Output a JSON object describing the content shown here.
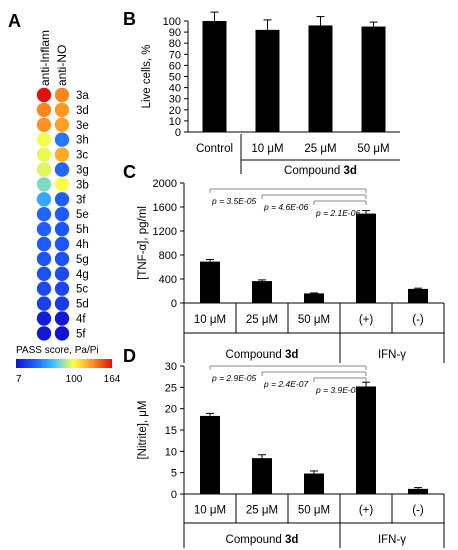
{
  "panels": {
    "A": {
      "letter": "A",
      "col_labels": [
        "anti-Inflam",
        "anti-NO"
      ],
      "rows": [
        {
          "label": "3a",
          "inflam": 164,
          "no": 135
        },
        {
          "label": "3d",
          "inflam": 135,
          "no": 130
        },
        {
          "label": "3e",
          "inflam": 132,
          "no": 128
        },
        {
          "label": "3h",
          "inflam": 100,
          "no": 45
        },
        {
          "label": "3c",
          "inflam": 98,
          "no": 125
        },
        {
          "label": "3g",
          "inflam": 96,
          "no": 40
        },
        {
          "label": "3b",
          "inflam": 80,
          "no": 100
        },
        {
          "label": "3f",
          "inflam": 60,
          "no": 38
        },
        {
          "label": "5e",
          "inflam": 40,
          "no": 36
        },
        {
          "label": "5h",
          "inflam": 38,
          "no": 34
        },
        {
          "label": "4h",
          "inflam": 36,
          "no": 34
        },
        {
          "label": "5g",
          "inflam": 34,
          "no": 32
        },
        {
          "label": "4g",
          "inflam": 32,
          "no": 30
        },
        {
          "label": "5c",
          "inflam": 30,
          "no": 28
        },
        {
          "label": "5d",
          "inflam": 26,
          "no": 24
        },
        {
          "label": "4f",
          "inflam": 12,
          "no": 10
        },
        {
          "label": "5f",
          "inflam": 10,
          "no": 8
        }
      ],
      "legend": {
        "title": "PASS score, Pa/Pi",
        "min": "7",
        "mid": "100",
        "max": "164",
        "colors": [
          "#1010d0",
          "#2060ff",
          "#40c8ff",
          "#ffff40",
          "#ff9020",
          "#e01010"
        ]
      }
    },
    "B": {
      "letter": "B"
    },
    "C": {
      "letter": "C"
    },
    "D": {
      "letter": "D"
    }
  },
  "group_labels": {
    "compound": "Compound ",
    "compound_bold": "3d",
    "ifn": "IFN-γ"
  },
  "chart_data": [
    {
      "panel": "B",
      "type": "bar",
      "ylabel": "Live cells, %",
      "ylim": [
        0,
        100
      ],
      "yticks": [
        "0",
        "10",
        "20",
        "30",
        "40",
        "50",
        "60",
        "70",
        "80",
        "90",
        "100"
      ],
      "categories": [
        "Control",
        "10 μM",
        "25 μM",
        "50 μM"
      ],
      "values": [
        100,
        92,
        96,
        95
      ],
      "errors": [
        8,
        9,
        8,
        4
      ]
    },
    {
      "panel": "C",
      "type": "bar",
      "ylabel": "[TNF-α], pg/ml",
      "ylim": [
        0,
        2000
      ],
      "yticks": [
        "0",
        "400",
        "800",
        "1200",
        "1600",
        "2000"
      ],
      "categories": [
        "10 μM",
        "25 μM",
        "50 μM",
        "(+)",
        "(-)"
      ],
      "values": [
        690,
        365,
        160,
        1490,
        235
      ],
      "errors": [
        35,
        20,
        8,
        50,
        12
      ],
      "annotations": [
        "p = 3.5E-05",
        "p = 4.6E-06",
        "p = 2.1E-06"
      ]
    },
    {
      "panel": "D",
      "type": "bar",
      "ylabel": "[Nitrite], μM",
      "ylim": [
        0,
        30
      ],
      "yticks": [
        "0",
        "5",
        "10",
        "15",
        "20",
        "25",
        "30"
      ],
      "categories": [
        "10 μM",
        "25 μM",
        "50 μM",
        "(+)",
        "(-)"
      ],
      "values": [
        18.3,
        8.4,
        4.8,
        25.2,
        1.2
      ],
      "errors": [
        0.6,
        0.8,
        0.6,
        1.0,
        0.3
      ],
      "annotations": [
        "p = 2.9E-05",
        "p = 2.4E-07",
        "p = 3.9E-08"
      ]
    }
  ]
}
